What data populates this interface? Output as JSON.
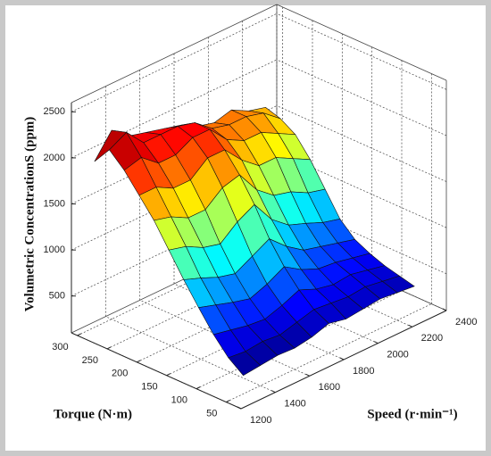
{
  "chart_data": {
    "type": "surface",
    "x_label": "Speed (r·min⁻¹)",
    "y_label": "Torque (N·m)",
    "z_label": "Volumetric ConcentrationS (ppm)",
    "colormap": "jet",
    "grid": true,
    "x": [
      1300,
      1400,
      1500,
      1600,
      1700,
      1800,
      1900,
      2000,
      2100,
      2200,
      2300
    ],
    "y": [
      50,
      75,
      100,
      125,
      150,
      175,
      200,
      225,
      250,
      275,
      300
    ],
    "z": [
      [
        300,
        320,
        340,
        330,
        360,
        420,
        380,
        400,
        420,
        400,
        380
      ],
      [
        420,
        400,
        420,
        400,
        450,
        500,
        480,
        460,
        480,
        450,
        420
      ],
      [
        600,
        560,
        520,
        500,
        560,
        640,
        560,
        520,
        540,
        500,
        460
      ],
      [
        820,
        760,
        700,
        650,
        720,
        820,
        700,
        620,
        600,
        560,
        520
      ],
      [
        1050,
        980,
        900,
        850,
        950,
        1050,
        880,
        750,
        700,
        650,
        600
      ],
      [
        1300,
        1250,
        1150,
        1100,
        1250,
        1350,
        1100,
        950,
        880,
        800,
        750
      ],
      [
        1550,
        1500,
        1400,
        1400,
        1550,
        1600,
        1350,
        1200,
        1150,
        1050,
        1000
      ],
      [
        1750,
        1750,
        1650,
        1650,
        1800,
        1800,
        1600,
        1450,
        1450,
        1350,
        1250
      ],
      [
        1950,
        2000,
        1850,
        1850,
        1950,
        1950,
        1750,
        1650,
        1650,
        1550,
        1450
      ],
      [
        2100,
        2200,
        2000,
        2000,
        2000,
        1950,
        1800,
        1750,
        1750,
        1700,
        1550
      ],
      [
        1900,
        2150,
        2000,
        1950,
        1900,
        1850,
        1750,
        1700,
        1750,
        1650,
        1600
      ]
    ],
    "xlim": [
      1200,
      2400
    ],
    "ylim": [
      25,
      310
    ],
    "zlim": [
      100,
      2600
    ],
    "xticks": [
      1200,
      1400,
      1600,
      1800,
      2000,
      2200,
      2400
    ],
    "yticks": [
      50,
      100,
      150,
      200,
      250,
      300
    ],
    "zticks": [
      500,
      1000,
      1500,
      2000,
      2500
    ]
  }
}
